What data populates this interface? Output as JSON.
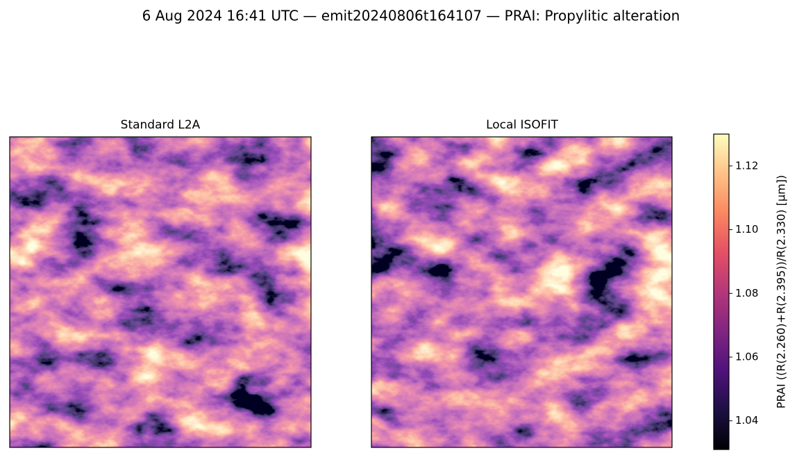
{
  "chart_data": {
    "type": "image",
    "title": "6 Aug 2024 16:41 UTC — emit20240806t164107 — PRAI: Propylitic alteration",
    "panels": [
      {
        "title": "Standard L2A"
      },
      {
        "title": "Local ISOFIT"
      }
    ],
    "colorbar_label": "PRAI  ((R(2.260)+R(2.395))/R(2.330)  [µm])",
    "clim": [
      1.031,
      1.13
    ],
    "cticks": [
      1.04,
      1.06,
      1.08,
      {
        "value": 1.1,
        "label": "1.10"
      },
      1.12
    ],
    "cmap_colors": [
      "#000004",
      "#1c1044",
      "#4f127b",
      "#812581",
      "#b5367a",
      "#e55064",
      "#fb8761",
      "#fec287",
      "#fcfdbf"
    ]
  }
}
